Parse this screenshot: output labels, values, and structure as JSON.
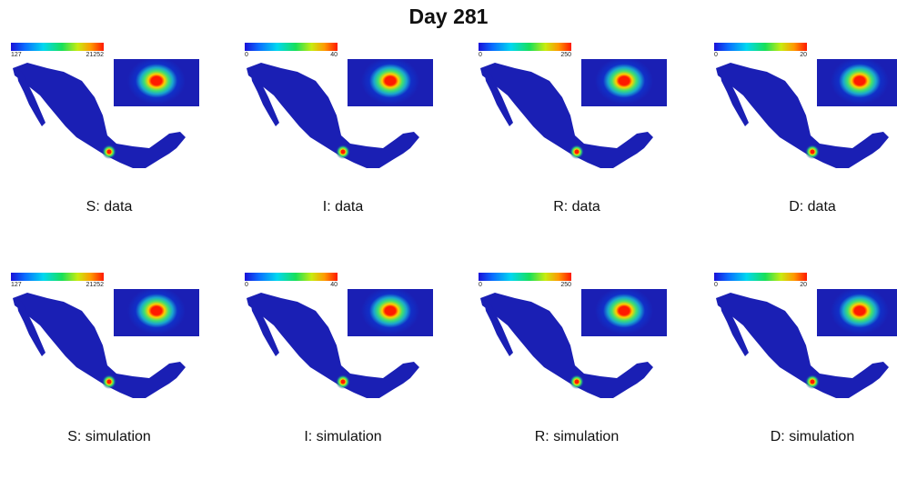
{
  "title": "Day 281",
  "panels": [
    {
      "label": "S: data",
      "cb_min": "127",
      "cb_max": "21252"
    },
    {
      "label": "I: data",
      "cb_min": "0",
      "cb_max": "40"
    },
    {
      "label": "R: data",
      "cb_min": "0",
      "cb_max": "250"
    },
    {
      "label": "D: data",
      "cb_min": "0",
      "cb_max": "20"
    },
    {
      "label": "S: simulation",
      "cb_min": "127",
      "cb_max": "21252"
    },
    {
      "label": "I: simulation",
      "cb_min": "0",
      "cb_max": "40"
    },
    {
      "label": "R: simulation",
      "cb_min": "0",
      "cb_max": "250"
    },
    {
      "label": "D: simulation",
      "cb_min": "0",
      "cb_max": "20"
    }
  ],
  "colors": {
    "map_base": "#1a1fb4",
    "hotspot": "#ff1a00"
  }
}
